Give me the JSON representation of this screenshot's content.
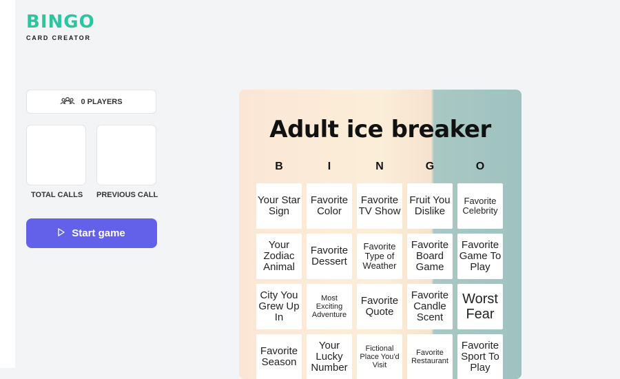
{
  "logo": {
    "brand": "BINGO",
    "tagline": "CARD CREATOR"
  },
  "sidebar": {
    "players": "0 PLAYERS",
    "total_calls_label": "TOTAL CALLS",
    "previous_call_label": "PREVIOUS CALL",
    "start_label": "Start game"
  },
  "card": {
    "title": "Adult ice breaker",
    "letters": [
      "B",
      "I",
      "N",
      "G",
      "O"
    ],
    "cells": [
      "Your Star Sign",
      "Favorite Color",
      "Favorite TV Show",
      "Fruit You Dislike",
      "Favorite Celebrity",
      "Your Zodiac Animal",
      "Favorite Dessert",
      "Favorite Type of Weather",
      "Favorite Board Game",
      "Favorite Game To Play",
      "City You Grew Up In",
      "Most Exciting Adventure",
      "Favorite Quote",
      "Favorite Candle Scent",
      "Worst Fear",
      "Favorite Season",
      "Your Lucky Number",
      "Fictional Place You'd Visit",
      "Favorite Restaurant",
      "Favorite Sport To Play"
    ]
  }
}
